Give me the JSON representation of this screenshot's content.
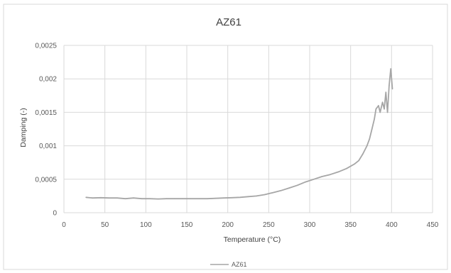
{
  "chart_data": {
    "type": "line",
    "title": "AZ61",
    "xlabel": "Temperature (°C)",
    "ylabel": "Damping (-)",
    "xlim": [
      0,
      450
    ],
    "ylim": [
      0,
      0.0025
    ],
    "x_ticks": [
      0,
      50,
      100,
      150,
      200,
      250,
      300,
      350,
      400,
      450
    ],
    "x_tick_labels": [
      "0",
      "50",
      "100",
      "150",
      "200",
      "250",
      "300",
      "350",
      "400",
      "450"
    ],
    "y_ticks": [
      0,
      0.0005,
      0.001,
      0.0015,
      0.002,
      0.0025
    ],
    "y_tick_labels": [
      "0",
      "0,0005",
      "0,001",
      "0,0015",
      "0,002",
      "0,0025"
    ],
    "grid": true,
    "legend_position": "bottom",
    "series": [
      {
        "name": "AZ61",
        "color": "#a6a6a6",
        "x": [
          27,
          35,
          45,
          55,
          65,
          75,
          85,
          95,
          105,
          115,
          125,
          135,
          145,
          155,
          165,
          175,
          185,
          195,
          205,
          215,
          225,
          235,
          245,
          255,
          265,
          275,
          285,
          295,
          305,
          315,
          325,
          335,
          345,
          355,
          360,
          365,
          370,
          373,
          376,
          379,
          381,
          384,
          386,
          389,
          391,
          393,
          395,
          397,
          399,
          401
        ],
        "values": [
          0.00023,
          0.00022,
          0.000225,
          0.00022,
          0.00022,
          0.00021,
          0.00022,
          0.00021,
          0.00021,
          0.000205,
          0.00021,
          0.00021,
          0.00021,
          0.00021,
          0.00021,
          0.00021,
          0.000215,
          0.00022,
          0.000225,
          0.00023,
          0.00024,
          0.00025,
          0.00027,
          0.0003,
          0.00033,
          0.00037,
          0.00041,
          0.00046,
          0.0005,
          0.00054,
          0.00057,
          0.00061,
          0.00066,
          0.00073,
          0.00078,
          0.00088,
          0.001,
          0.0011,
          0.00125,
          0.0014,
          0.00155,
          0.0016,
          0.0015,
          0.00165,
          0.00155,
          0.0018,
          0.0015,
          0.0019,
          0.00215,
          0.00185
        ]
      }
    ]
  }
}
